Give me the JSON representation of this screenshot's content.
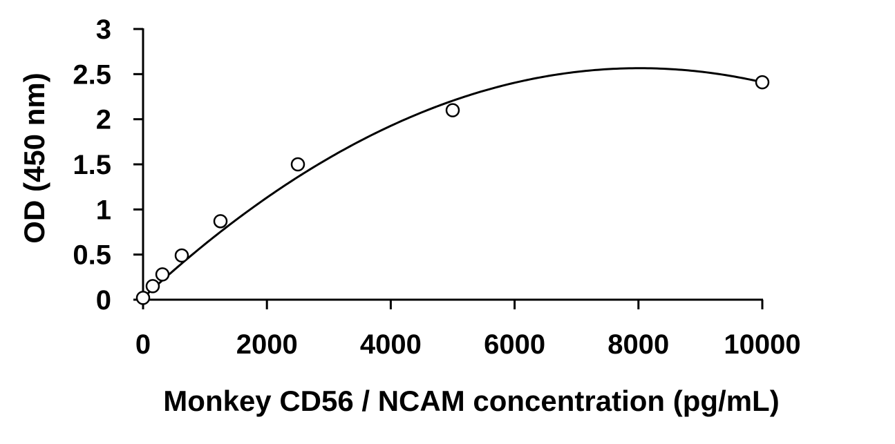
{
  "chart_data": {
    "type": "scatter",
    "title": "",
    "xlabel": "Monkey CD56 / NCAM concentration (pg/mL)",
    "ylabel": "OD (450 nm)",
    "xlim": [
      0,
      10000
    ],
    "ylim": [
      0,
      3
    ],
    "x_ticks": [
      0,
      2000,
      4000,
      6000,
      8000,
      10000
    ],
    "y_ticks": [
      0,
      0.5,
      1,
      1.5,
      2,
      2.5,
      3
    ],
    "x_tick_labels": [
      "0",
      "2000",
      "4000",
      "6000",
      "8000",
      "10000"
    ],
    "y_tick_labels": [
      "0",
      "0.5",
      "1",
      "1.5",
      "2",
      "2.5",
      "3"
    ],
    "grid": false,
    "legend": "none",
    "series": [
      {
        "marker": "open-circle",
        "color": "#000000",
        "x": [
          0,
          156,
          313,
          625,
          1250,
          2500,
          5000,
          10000
        ],
        "y": [
          0.02,
          0.15,
          0.28,
          0.49,
          0.87,
          1.5,
          2.1,
          2.41
        ]
      }
    ],
    "trendline": {
      "type": "polynomial-2",
      "color": "#000000",
      "coefficients": [
        0.02,
        0.000635,
        -3.96e-08
      ]
    }
  }
}
